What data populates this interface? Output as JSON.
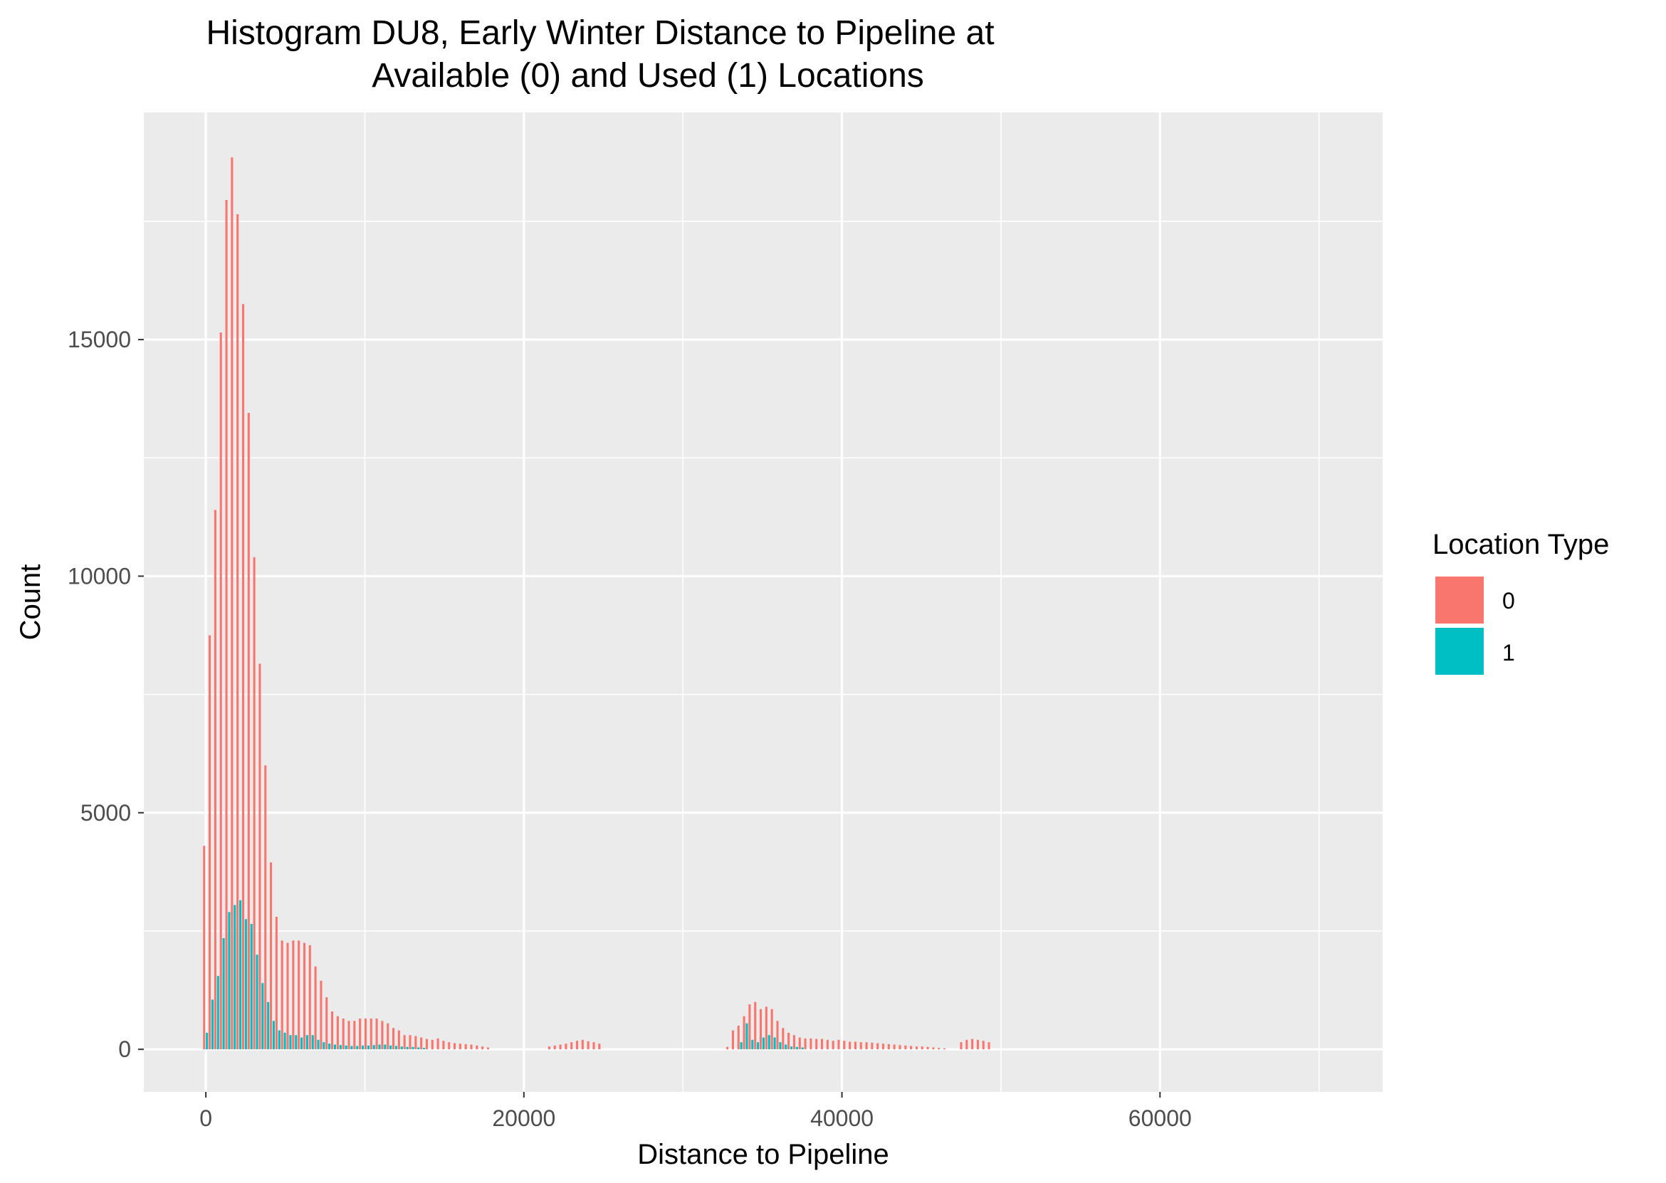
{
  "chart_data": {
    "type": "bar",
    "title_lines": [
      "Histogram DU8, Early Winter Distance to Pipeline at",
      "Available (0) and Used (1) Locations"
    ],
    "xlabel": "Distance to Pipeline",
    "ylabel": "Count",
    "xlim": [
      -3900,
      74000
    ],
    "ylim": [
      -900,
      19800
    ],
    "x_ticks": [
      0,
      20000,
      40000,
      60000
    ],
    "x_tick_labels": [
      "0",
      "20000",
      "40000",
      "60000"
    ],
    "y_ticks": [
      0,
      5000,
      10000,
      15000
    ],
    "y_tick_labels": [
      "0",
      "5000",
      "10000",
      "15000"
    ],
    "x_minor_ticks": [
      10000,
      30000,
      50000,
      70000
    ],
    "y_minor_ticks": [
      2500,
      7500,
      12500,
      17500
    ],
    "grid": true,
    "panel_background": "#ebebeb",
    "legend": {
      "title": "Location Type",
      "position": "right",
      "entries": [
        {
          "label": "0",
          "color": "#f8766d"
        },
        {
          "label": "1",
          "color": "#00bfc4"
        }
      ]
    },
    "bin_width": 350,
    "series": [
      {
        "name": "0",
        "color": "#f8766d",
        "points": [
          [
            0,
            4300
          ],
          [
            350,
            8750
          ],
          [
            700,
            11400
          ],
          [
            1050,
            15150
          ],
          [
            1400,
            17950
          ],
          [
            1750,
            18850
          ],
          [
            2100,
            17650
          ],
          [
            2450,
            15750
          ],
          [
            2800,
            13450
          ],
          [
            3150,
            10400
          ],
          [
            3500,
            8150
          ],
          [
            3850,
            6000
          ],
          [
            4200,
            3950
          ],
          [
            4550,
            2800
          ],
          [
            4900,
            2300
          ],
          [
            5250,
            2250
          ],
          [
            5600,
            2300
          ],
          [
            5950,
            2300
          ],
          [
            6300,
            2250
          ],
          [
            6650,
            2200
          ],
          [
            7000,
            1750
          ],
          [
            7350,
            1450
          ],
          [
            7700,
            1100
          ],
          [
            8050,
            800
          ],
          [
            8400,
            700
          ],
          [
            8750,
            650
          ],
          [
            9100,
            600
          ],
          [
            9450,
            600
          ],
          [
            9800,
            650
          ],
          [
            10150,
            650
          ],
          [
            10500,
            650
          ],
          [
            10850,
            650
          ],
          [
            11200,
            600
          ],
          [
            11550,
            550
          ],
          [
            11900,
            450
          ],
          [
            12250,
            400
          ],
          [
            12600,
            300
          ],
          [
            12950,
            300
          ],
          [
            13300,
            280
          ],
          [
            13650,
            250
          ],
          [
            14000,
            220
          ],
          [
            14350,
            200
          ],
          [
            14700,
            230
          ],
          [
            15050,
            180
          ],
          [
            15400,
            150
          ],
          [
            15750,
            130
          ],
          [
            16100,
            120
          ],
          [
            16450,
            110
          ],
          [
            16800,
            100
          ],
          [
            17150,
            80
          ],
          [
            17500,
            60
          ],
          [
            17850,
            40
          ],
          [
            21700,
            60
          ],
          [
            22050,
            80
          ],
          [
            22400,
            100
          ],
          [
            22750,
            120
          ],
          [
            23100,
            150
          ],
          [
            23450,
            180
          ],
          [
            23800,
            200
          ],
          [
            24150,
            170
          ],
          [
            24500,
            150
          ],
          [
            24850,
            120
          ],
          [
            32900,
            50
          ],
          [
            33250,
            400
          ],
          [
            33600,
            500
          ],
          [
            33950,
            700
          ],
          [
            34300,
            950
          ],
          [
            34650,
            1000
          ],
          [
            35000,
            850
          ],
          [
            35350,
            900
          ],
          [
            35700,
            850
          ],
          [
            36050,
            600
          ],
          [
            36400,
            450
          ],
          [
            36750,
            350
          ],
          [
            37100,
            300
          ],
          [
            37450,
            250
          ],
          [
            37800,
            230
          ],
          [
            38150,
            230
          ],
          [
            38500,
            220
          ],
          [
            38850,
            220
          ],
          [
            39200,
            200
          ],
          [
            39550,
            180
          ],
          [
            39900,
            200
          ],
          [
            40250,
            180
          ],
          [
            40600,
            160
          ],
          [
            40950,
            160
          ],
          [
            41300,
            150
          ],
          [
            41650,
            150
          ],
          [
            42000,
            140
          ],
          [
            42350,
            130
          ],
          [
            42700,
            120
          ],
          [
            43050,
            110
          ],
          [
            43400,
            100
          ],
          [
            43750,
            90
          ],
          [
            44100,
            80
          ],
          [
            44450,
            70
          ],
          [
            44800,
            60
          ],
          [
            45150,
            60
          ],
          [
            45500,
            50
          ],
          [
            45850,
            40
          ],
          [
            46200,
            30
          ],
          [
            46550,
            20
          ],
          [
            47600,
            150
          ],
          [
            47950,
            200
          ],
          [
            48300,
            220
          ],
          [
            48650,
            200
          ],
          [
            49000,
            180
          ],
          [
            49350,
            150
          ]
        ]
      },
      {
        "name": "1",
        "color": "#00bfc4",
        "points": [
          [
            0,
            350
          ],
          [
            350,
            1050
          ],
          [
            700,
            1550
          ],
          [
            1050,
            2350
          ],
          [
            1400,
            2900
          ],
          [
            1750,
            3050
          ],
          [
            2100,
            3150
          ],
          [
            2450,
            2750
          ],
          [
            2800,
            2650
          ],
          [
            3150,
            2000
          ],
          [
            3500,
            1400
          ],
          [
            3850,
            1000
          ],
          [
            4200,
            600
          ],
          [
            4550,
            400
          ],
          [
            4900,
            350
          ],
          [
            5250,
            300
          ],
          [
            5600,
            300
          ],
          [
            5950,
            250
          ],
          [
            6300,
            300
          ],
          [
            6650,
            300
          ],
          [
            7000,
            200
          ],
          [
            7350,
            150
          ],
          [
            7700,
            120
          ],
          [
            8050,
            100
          ],
          [
            8400,
            90
          ],
          [
            8750,
            80
          ],
          [
            9100,
            70
          ],
          [
            9450,
            70
          ],
          [
            9800,
            80
          ],
          [
            10150,
            80
          ],
          [
            10500,
            90
          ],
          [
            10850,
            100
          ],
          [
            11200,
            100
          ],
          [
            11550,
            80
          ],
          [
            11900,
            70
          ],
          [
            12250,
            60
          ],
          [
            12600,
            50
          ],
          [
            12950,
            50
          ],
          [
            13300,
            40
          ],
          [
            13650,
            30
          ],
          [
            33600,
            150
          ],
          [
            33950,
            550
          ],
          [
            34300,
            200
          ],
          [
            34650,
            150
          ],
          [
            35000,
            250
          ],
          [
            35350,
            300
          ],
          [
            35700,
            250
          ],
          [
            36050,
            150
          ],
          [
            36400,
            100
          ],
          [
            36750,
            60
          ],
          [
            37100,
            50
          ],
          [
            37450,
            40
          ]
        ]
      }
    ]
  }
}
